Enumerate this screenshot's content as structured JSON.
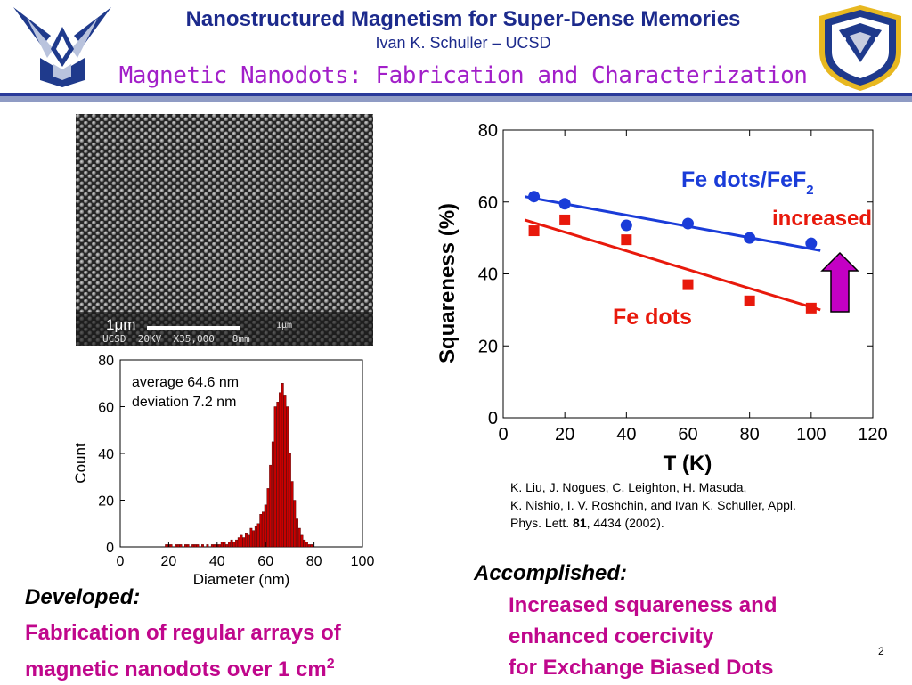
{
  "header": {
    "title": "Nanostructured Magnetism for Super-Dense Memories",
    "author": "Ivan K. Schuller – UCSD",
    "subtitle": "Magnetic Nanodots: Fabrication and Characterization"
  },
  "logos": {
    "left": "air-force-wings-logo",
    "right": "air-force-research-laboratory-seal"
  },
  "sem_image": {
    "scalebar_label": "1μm",
    "footer_text": "UCSD  20KV  X35,000   8mm",
    "scale_tag": "1μm"
  },
  "histogram": {
    "annotation_line1": "average 64.6 nm",
    "annotation_line2": "deviation 7.2 nm"
  },
  "squareness": {
    "label_fe_feF2": "Fe dots/FeF",
    "label_fe_feF2_sub": "2",
    "label_fe": "Fe dots",
    "label_increased": "increased"
  },
  "chart_data": [
    {
      "type": "bar",
      "xlabel": "Diameter (nm)",
      "ylabel": "Count",
      "xlim": [
        0,
        100
      ],
      "ylim": [
        0,
        80
      ],
      "xticks": [
        0,
        20,
        40,
        60,
        80,
        100
      ],
      "yticks": [
        0,
        20,
        40,
        60,
        80
      ],
      "x": [
        19,
        20,
        21,
        23,
        24,
        25,
        27,
        28,
        30,
        31,
        32,
        34,
        36,
        38,
        39,
        40,
        41,
        42,
        43,
        44,
        45,
        46,
        47,
        48,
        49,
        50,
        51,
        52,
        53,
        54,
        55,
        56,
        57,
        58,
        59,
        60,
        61,
        62,
        63,
        64,
        65,
        66,
        67,
        68,
        69,
        70,
        71,
        72,
        73,
        74,
        75,
        76,
        77,
        78,
        79
      ],
      "values": [
        1,
        1,
        1,
        1,
        1,
        1,
        1,
        1,
        1,
        1,
        1,
        1,
        1,
        1,
        1,
        1,
        1,
        2,
        2,
        1,
        2,
        3,
        2,
        3,
        4,
        5,
        4,
        6,
        5,
        8,
        7,
        9,
        10,
        14,
        15,
        18,
        25,
        35,
        45,
        60,
        62,
        66,
        70,
        65,
        60,
        40,
        28,
        20,
        12,
        8,
        5,
        3,
        2,
        1,
        1
      ],
      "color": "#c80000"
    },
    {
      "type": "scatter",
      "xlabel": "T (K)",
      "ylabel": "Squareness (%)",
      "xlim": [
        0,
        120
      ],
      "ylim": [
        0,
        80
      ],
      "xticks": [
        0,
        20,
        40,
        60,
        80,
        100,
        120
      ],
      "yticks": [
        0,
        20,
        40,
        60,
        80
      ],
      "series": [
        {
          "name": "Fe dots/FeF2",
          "marker": "circle",
          "color": "#1a3cd8",
          "x": [
            10,
            20,
            40,
            60,
            80,
            100
          ],
          "y": [
            61.5,
            59.5,
            53.5,
            54,
            50,
            48.5
          ],
          "fit": [
            [
              7,
              61.5
            ],
            [
              103,
              46.5
            ]
          ]
        },
        {
          "name": "Fe dots",
          "marker": "square",
          "color": "#e8190c",
          "x": [
            10,
            20,
            40,
            60,
            80,
            100
          ],
          "y": [
            52,
            55,
            49.5,
            37,
            32.5,
            30.5
          ],
          "fit": [
            [
              7,
              55
            ],
            [
              103,
              30
            ]
          ]
        }
      ]
    }
  ],
  "reference": {
    "line1": "K. Liu, J. Nogues, C. Leighton, H. Masuda,",
    "line2": "K. Nishio, I. V. Roshchin, and Ivan K. Schuller, Appl.",
    "line3_pre": "Phys. Lett. ",
    "line3_bold": "81",
    "line3_post": ", 4434 (2002)."
  },
  "accomplished": {
    "label": "Accomplished:",
    "line1": "Increased squareness and",
    "line2": "enhanced coercivity",
    "line3": "for Exchange Biased Dots"
  },
  "developed": {
    "label": "Developed:",
    "line1": "Fabrication of regular arrays of",
    "line2": "magnetic nanodots over 1 cm",
    "line2_sup": "2"
  },
  "page_number": "2",
  "colors": {
    "title": "#1c2a8c",
    "subtitle": "#a21fc9",
    "highlight": "#c0078c",
    "arrow": "#c400c4"
  }
}
